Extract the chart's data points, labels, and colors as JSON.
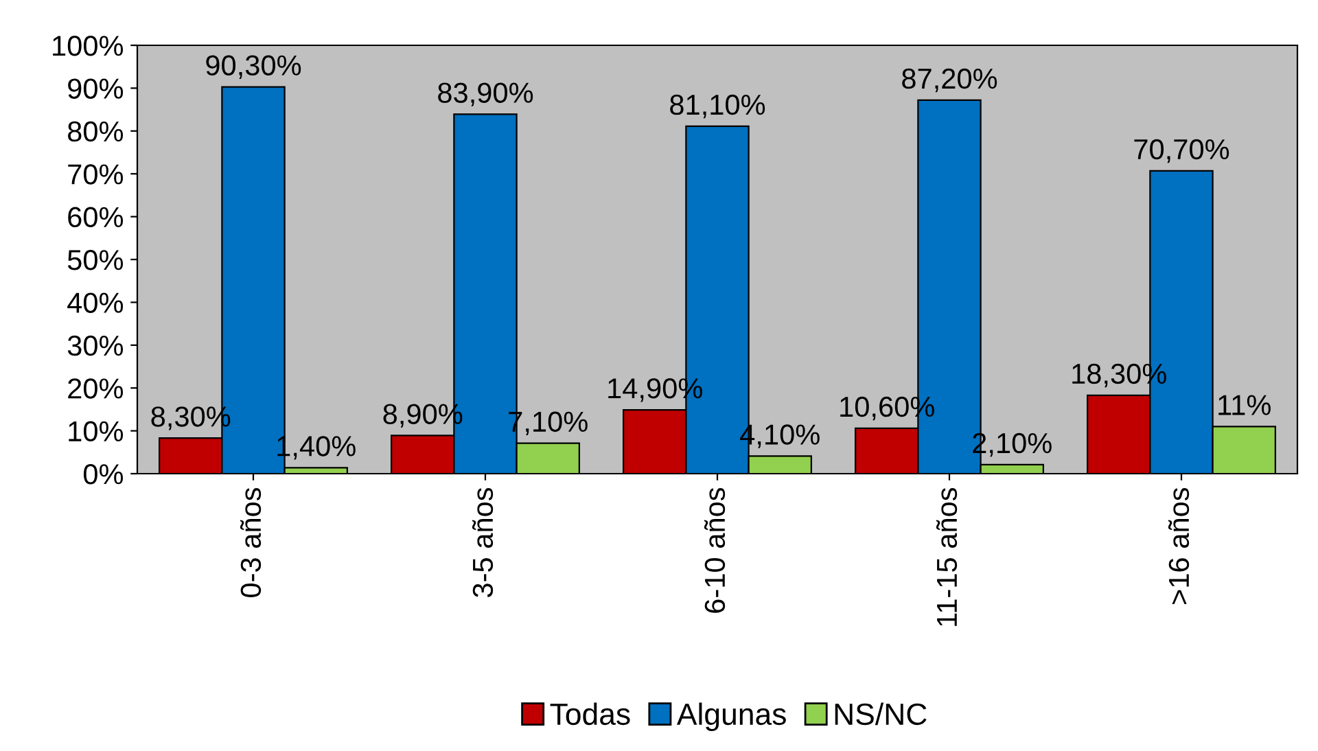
{
  "chart_data": {
    "type": "bar",
    "categories": [
      "0-3 años",
      "3-5 años",
      "6-10 años",
      "11-15 años",
      ">16 años"
    ],
    "series": [
      {
        "name": "Todas",
        "color": "#c00000",
        "values": [
          8.3,
          8.9,
          14.9,
          10.6,
          18.3
        ],
        "value_labels": [
          "8,30%",
          "8,90%",
          "14,90%",
          "10,60%",
          "18,30%"
        ]
      },
      {
        "name": "Algunas",
        "color": "#0070c0",
        "values": [
          90.3,
          83.9,
          81.1,
          87.2,
          70.7
        ],
        "value_labels": [
          "90,30%",
          "83,90%",
          "81,10%",
          "87,20%",
          "70,70%"
        ]
      },
      {
        "name": "NS/NC",
        "color": "#92d050",
        "values": [
          1.4,
          7.1,
          4.1,
          2.1,
          11
        ],
        "value_labels": [
          "1,40%",
          "7,10%",
          "4,10%",
          "2,10%",
          "11%"
        ]
      }
    ],
    "ylim": [
      0,
      100
    ],
    "yticks": [
      {
        "value": 0,
        "label": "0%"
      },
      {
        "value": 10,
        "label": "10%"
      },
      {
        "value": 20,
        "label": "20%"
      },
      {
        "value": 30,
        "label": "30%"
      },
      {
        "value": 40,
        "label": "40%"
      },
      {
        "value": 50,
        "label": "50%"
      },
      {
        "value": 60,
        "label": "60%"
      },
      {
        "value": 70,
        "label": "70%"
      },
      {
        "value": 80,
        "label": "80%"
      },
      {
        "value": 90,
        "label": "90%"
      },
      {
        "value": 100,
        "label": "100%"
      }
    ],
    "legend": "bottom",
    "grid": false
  }
}
